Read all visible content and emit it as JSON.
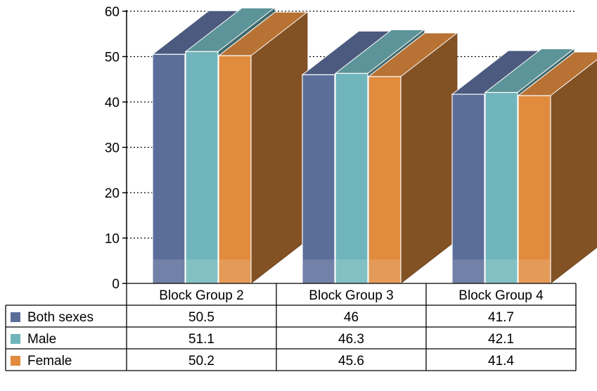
{
  "chart_data": {
    "type": "bar",
    "style": "3d-clustered-with-data-table",
    "categories": [
      "Block Group 2",
      "Block Group 3",
      "Block Group 4"
    ],
    "series": [
      {
        "name": "Both sexes",
        "values": [
          50.5,
          46,
          41.7
        ],
        "color": "#5b6e9a"
      },
      {
        "name": "Male",
        "values": [
          51.1,
          46.3,
          42.1
        ],
        "color": "#70b5bb"
      },
      {
        "name": "Female",
        "values": [
          50.2,
          45.6,
          41.4
        ],
        "color": "#e08b3e"
      }
    ],
    "ylim": [
      0,
      60
    ],
    "yticks": [
      0,
      10,
      20,
      30,
      40,
      50,
      60
    ],
    "grid": true,
    "legend": "data-table-left"
  }
}
